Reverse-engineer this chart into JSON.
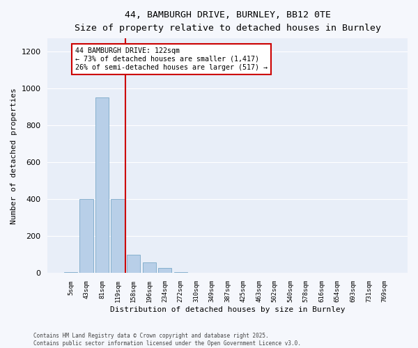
{
  "title_line1": "44, BAMBURGH DRIVE, BURNLEY, BB12 0TE",
  "title_line2": "Size of property relative to detached houses in Burnley",
  "xlabel": "Distribution of detached houses by size in Burnley",
  "ylabel": "Number of detached properties",
  "bar_labels": [
    "5sqm",
    "43sqm",
    "81sqm",
    "119sqm",
    "158sqm",
    "196sqm",
    "234sqm",
    "272sqm",
    "310sqm",
    "349sqm",
    "387sqm",
    "425sqm",
    "463sqm",
    "502sqm",
    "540sqm",
    "578sqm",
    "616sqm",
    "654sqm",
    "693sqm",
    "731sqm",
    "769sqm"
  ],
  "bar_values": [
    5,
    400,
    950,
    400,
    100,
    60,
    30,
    5,
    2,
    0,
    0,
    0,
    0,
    0,
    0,
    0,
    0,
    0,
    0,
    0,
    0
  ],
  "bar_color": "#b8cfe8",
  "bar_edgecolor": "#6a9ec0",
  "background_color": "#e8eef8",
  "fig_background": "#f5f7fc",
  "grid_color": "#ffffff",
  "vline_color": "#cc0000",
  "vline_x_index": 3.5,
  "annotation_text": "44 BAMBURGH DRIVE: 122sqm\n← 73% of detached houses are smaller (1,417)\n26% of semi-detached houses are larger (517) →",
  "annotation_box_edgecolor": "#cc0000",
  "annotation_box_facecolor": "#ffffff",
  "ylim": [
    0,
    1270
  ],
  "yticks": [
    0,
    200,
    400,
    600,
    800,
    1000,
    1200
  ],
  "footnote1": "Contains HM Land Registry data © Crown copyright and database right 2025.",
  "footnote2": "Contains public sector information licensed under the Open Government Licence v3.0."
}
